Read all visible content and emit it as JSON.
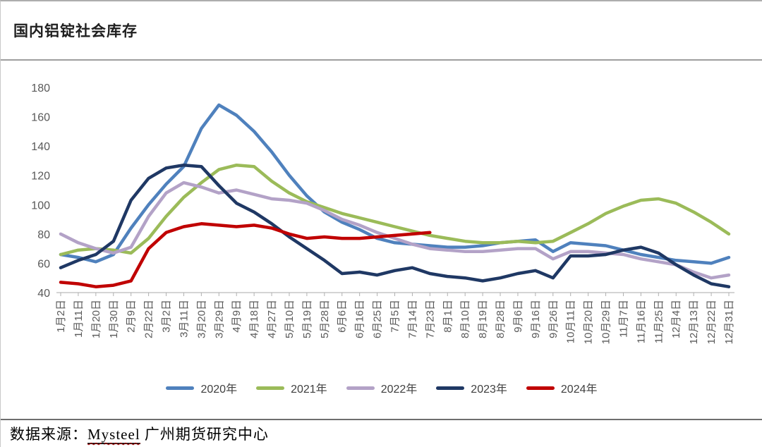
{
  "page": {
    "title": "国内铝锭社会库存"
  },
  "footer": {
    "prefix": "数据来源：",
    "source": "Mysteel",
    "suffix": " 广州期货研究中心"
  },
  "colors": {
    "axis_text": "#595959",
    "axis_line": "#c6c6c6",
    "tick": "#b0b0b0",
    "legend_text": "#404040",
    "title_text": "#1f1f1f"
  },
  "chart_data": {
    "type": "line",
    "title": "国内铝锭社会库存",
    "xlabel": "",
    "ylabel": "",
    "ylim": [
      40,
      184
    ],
    "yticks": [
      40,
      60,
      80,
      100,
      120,
      140,
      160,
      180
    ],
    "grid": false,
    "legend_position": "bottom",
    "categories": [
      "1月2日",
      "1月11日",
      "1月20日",
      "1月30日",
      "2月9日",
      "2月22日",
      "3月2日",
      "3月11日",
      "3月20日",
      "3月29日",
      "4月9日",
      "4月18日",
      "4月27日",
      "5月10日",
      "5月19日",
      "5月28日",
      "6月6日",
      "6月16日",
      "6月25日",
      "7月5日",
      "7月14日",
      "7月23日",
      "8月1日",
      "8月10日",
      "8月19日",
      "8月28日",
      "9月6日",
      "9月16日",
      "9月26日",
      "10月11日",
      "10月20日",
      "10月29日",
      "11月7日",
      "11月16日",
      "11月25日",
      "12月4日",
      "12月13日",
      "12月22日",
      "12月31日"
    ],
    "series": [
      {
        "name": "2020年",
        "color": "#4F81BD",
        "values": [
          66,
          64,
          61,
          66,
          84,
          100,
          114,
          126,
          152,
          168,
          161,
          150,
          136,
          120,
          106,
          95,
          88,
          83,
          77,
          74,
          73,
          72,
          71,
          71,
          72,
          74,
          75,
          76,
          68,
          74,
          73,
          72,
          69,
          66,
          64,
          62,
          61,
          60,
          64
        ]
      },
      {
        "name": "2021年",
        "color": "#9BBB59",
        "values": [
          66,
          69,
          70,
          69,
          67,
          77,
          92,
          105,
          115,
          124,
          127,
          126,
          116,
          108,
          102,
          98,
          94,
          91,
          88,
          85,
          82,
          79,
          77,
          75,
          74,
          74,
          75,
          74,
          75,
          81,
          87,
          94,
          99,
          103,
          104,
          101,
          95,
          88,
          80
        ]
      },
      {
        "name": "2022年",
        "color": "#B3A2C7",
        "values": [
          80,
          74,
          70,
          67,
          71,
          92,
          108,
          115,
          112,
          108,
          110,
          107,
          104,
          103,
          101,
          96,
          90,
          86,
          81,
          77,
          73,
          70,
          69,
          68,
          68,
          69,
          70,
          70,
          63,
          68,
          68,
          67,
          66,
          63,
          61,
          59,
          54,
          50,
          52
        ]
      },
      {
        "name": "2023年",
        "color": "#1F3864",
        "values": [
          57,
          62,
          66,
          75,
          103,
          118,
          125,
          127,
          126,
          113,
          101,
          95,
          87,
          78,
          70,
          62,
          53,
          54,
          52,
          55,
          57,
          53,
          51,
          50,
          48,
          50,
          53,
          55,
          50,
          65,
          65,
          66,
          69,
          71,
          67,
          59,
          52,
          46,
          44
        ]
      },
      {
        "name": "2024年",
        "color": "#C00000",
        "values": [
          47,
          46,
          44,
          45,
          48,
          70,
          81,
          85,
          87,
          86,
          85,
          86,
          84,
          80,
          77,
          78,
          77,
          77,
          78,
          79,
          80,
          81
        ]
      }
    ]
  }
}
